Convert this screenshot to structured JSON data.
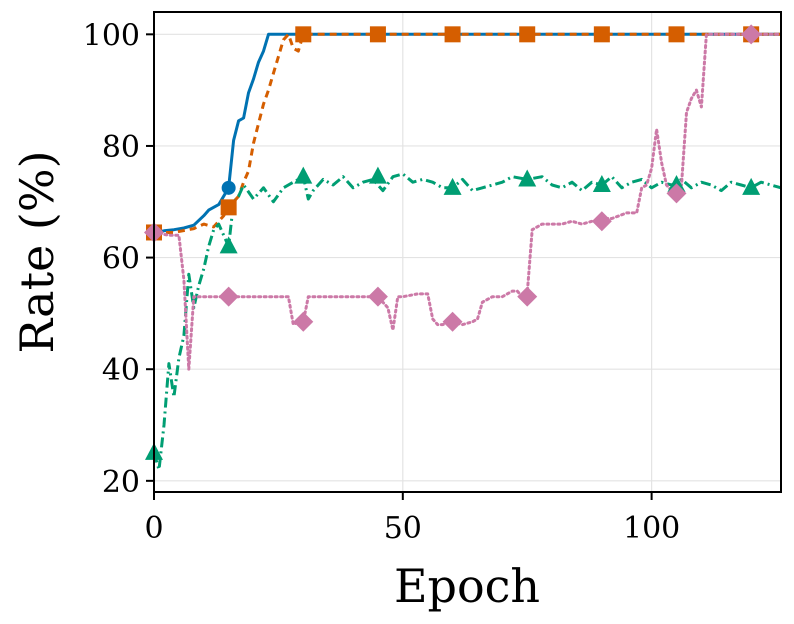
{
  "chart_data": {
    "type": "line",
    "title": "",
    "xlabel": "Epoch",
    "ylabel": "Rate (%)",
    "xlim": [
      0,
      126
    ],
    "ylim": [
      18,
      104
    ],
    "xticks": [
      0,
      50,
      100
    ],
    "yticks": [
      20,
      40,
      60,
      80,
      100
    ],
    "grid": true,
    "legend": "none",
    "series": [
      {
        "name": "blue-solid",
        "color": "#0072B2",
        "dash": "",
        "marker": "circle",
        "x": [
          0,
          2,
          4,
          6,
          8,
          10,
          11,
          12,
          13,
          14,
          15,
          16,
          17,
          18,
          19,
          20,
          21,
          22,
          23,
          26,
          30,
          126
        ],
        "y": [
          64.5,
          64.8,
          65,
          65.3,
          65.8,
          67.5,
          68.5,
          69,
          69.5,
          71,
          72.5,
          81,
          84.5,
          85,
          89.5,
          92,
          95,
          97,
          100,
          100,
          100,
          100
        ],
        "markers_x": [
          0,
          15,
          30,
          45,
          60,
          75,
          90,
          105,
          120
        ],
        "markers_y": [
          64.5,
          72.5,
          100,
          100,
          100,
          100,
          100,
          100,
          100
        ]
      },
      {
        "name": "orange-dashed",
        "color": "#D55E00",
        "dash": "7,5",
        "marker": "square",
        "x": [
          0,
          4,
          8,
          10,
          12,
          14,
          15,
          16,
          17,
          18,
          19,
          20,
          21,
          22,
          23,
          24,
          25,
          26,
          27,
          28,
          29,
          30,
          126
        ],
        "y": [
          64.5,
          64.5,
          65.2,
          66,
          65.5,
          67.5,
          69,
          70,
          71,
          73.5,
          75.5,
          80.5,
          84,
          87.5,
          90,
          93,
          96,
          99,
          100,
          97.5,
          97,
          100,
          100
        ],
        "markers_x": [
          0,
          15,
          30,
          45,
          60,
          75,
          90,
          105,
          120
        ],
        "markers_y": [
          64.5,
          69,
          100,
          100,
          100,
          100,
          100,
          100,
          100
        ]
      },
      {
        "name": "green-dashdot",
        "color": "#009E73",
        "dash": "10,4,2,4",
        "marker": "triangle",
        "x": [
          0,
          1,
          2,
          3,
          4,
          5,
          6,
          7,
          8,
          9,
          10,
          11,
          12,
          13,
          14,
          15,
          16,
          17,
          18,
          20,
          22,
          24,
          26,
          28,
          30,
          31,
          32,
          34,
          36,
          38,
          40,
          42,
          44,
          46,
          48,
          50,
          52,
          54,
          56,
          58,
          60,
          62,
          64,
          66,
          68,
          70,
          72,
          75,
          78,
          80,
          82,
          84,
          86,
          88,
          90,
          92,
          94,
          96,
          98,
          100,
          102,
          104,
          106,
          108,
          110,
          112,
          114,
          116,
          118,
          120,
          122,
          124,
          126
        ],
        "y": [
          25,
          22,
          30,
          41,
          35,
          42,
          46,
          57,
          51,
          55,
          58,
          62,
          65,
          66,
          64,
          62,
          70,
          71,
          73,
          70.5,
          72.5,
          70,
          72.5,
          73.5,
          74.5,
          70.5,
          72,
          74,
          73,
          74.5,
          72.5,
          73.5,
          74,
          72,
          74.5,
          75,
          73.5,
          74,
          73.5,
          72.5,
          72.5,
          74,
          72,
          72.5,
          73,
          73.5,
          74.5,
          74,
          74.5,
          73,
          72.5,
          73.5,
          72,
          73.5,
          73,
          74.5,
          72.5,
          73.5,
          74,
          72.5,
          73.5,
          73,
          74,
          72.5,
          73.5,
          73,
          72,
          73.5,
          73,
          72.5,
          73.5,
          73,
          72.5
        ],
        "markers_x": [
          0,
          15,
          30,
          45,
          60,
          75,
          90,
          105,
          120
        ],
        "markers_y": [
          25,
          62,
          74.5,
          74.5,
          72.5,
          74,
          73,
          73,
          72.5
        ]
      },
      {
        "name": "pink-dotted",
        "color": "#CC79A7",
        "dash": "2,3.5",
        "marker": "diamond",
        "x": [
          0,
          3,
          5,
          6,
          7,
          8,
          14,
          15,
          16,
          18,
          20,
          22,
          24,
          27,
          28,
          29,
          30,
          31,
          32,
          34,
          36,
          38,
          40,
          42,
          44,
          45,
          46,
          47,
          48,
          49,
          50,
          53,
          55,
          56,
          57,
          58,
          60,
          62,
          64,
          65,
          66,
          67,
          68,
          70,
          72,
          73,
          74,
          75,
          76,
          77,
          78,
          80,
          82,
          84,
          86,
          88,
          90,
          92,
          95,
          97,
          98,
          99,
          100,
          101,
          102,
          103,
          104,
          105,
          106,
          107,
          108,
          109,
          110,
          111,
          112,
          114,
          116,
          118,
          120,
          122,
          124,
          126
        ],
        "y": [
          64.5,
          64,
          64,
          56,
          40,
          53,
          53,
          53,
          53,
          53,
          53,
          53,
          53,
          53,
          48,
          48.5,
          48.5,
          53,
          53,
          53,
          53,
          53,
          53,
          53,
          53,
          53,
          52,
          51,
          47,
          53,
          53,
          53.5,
          53.5,
          49,
          48,
          48,
          48.5,
          48,
          48.5,
          49,
          52,
          52.5,
          53,
          53,
          54,
          54,
          53,
          53.5,
          65,
          65.5,
          66,
          66,
          66,
          66.5,
          66,
          66.5,
          67,
          67,
          68,
          68,
          72.5,
          73,
          76,
          83,
          77,
          73,
          72,
          71.5,
          73,
          86,
          88.5,
          90,
          87,
          100,
          100,
          100,
          100,
          100,
          100,
          100,
          100,
          100
        ],
        "markers_x": [
          0,
          15,
          30,
          45,
          60,
          75,
          90,
          105,
          120
        ],
        "markers_y": [
          64.5,
          53,
          48.5,
          53,
          48.5,
          53,
          66.5,
          71.5,
          100
        ]
      }
    ]
  }
}
